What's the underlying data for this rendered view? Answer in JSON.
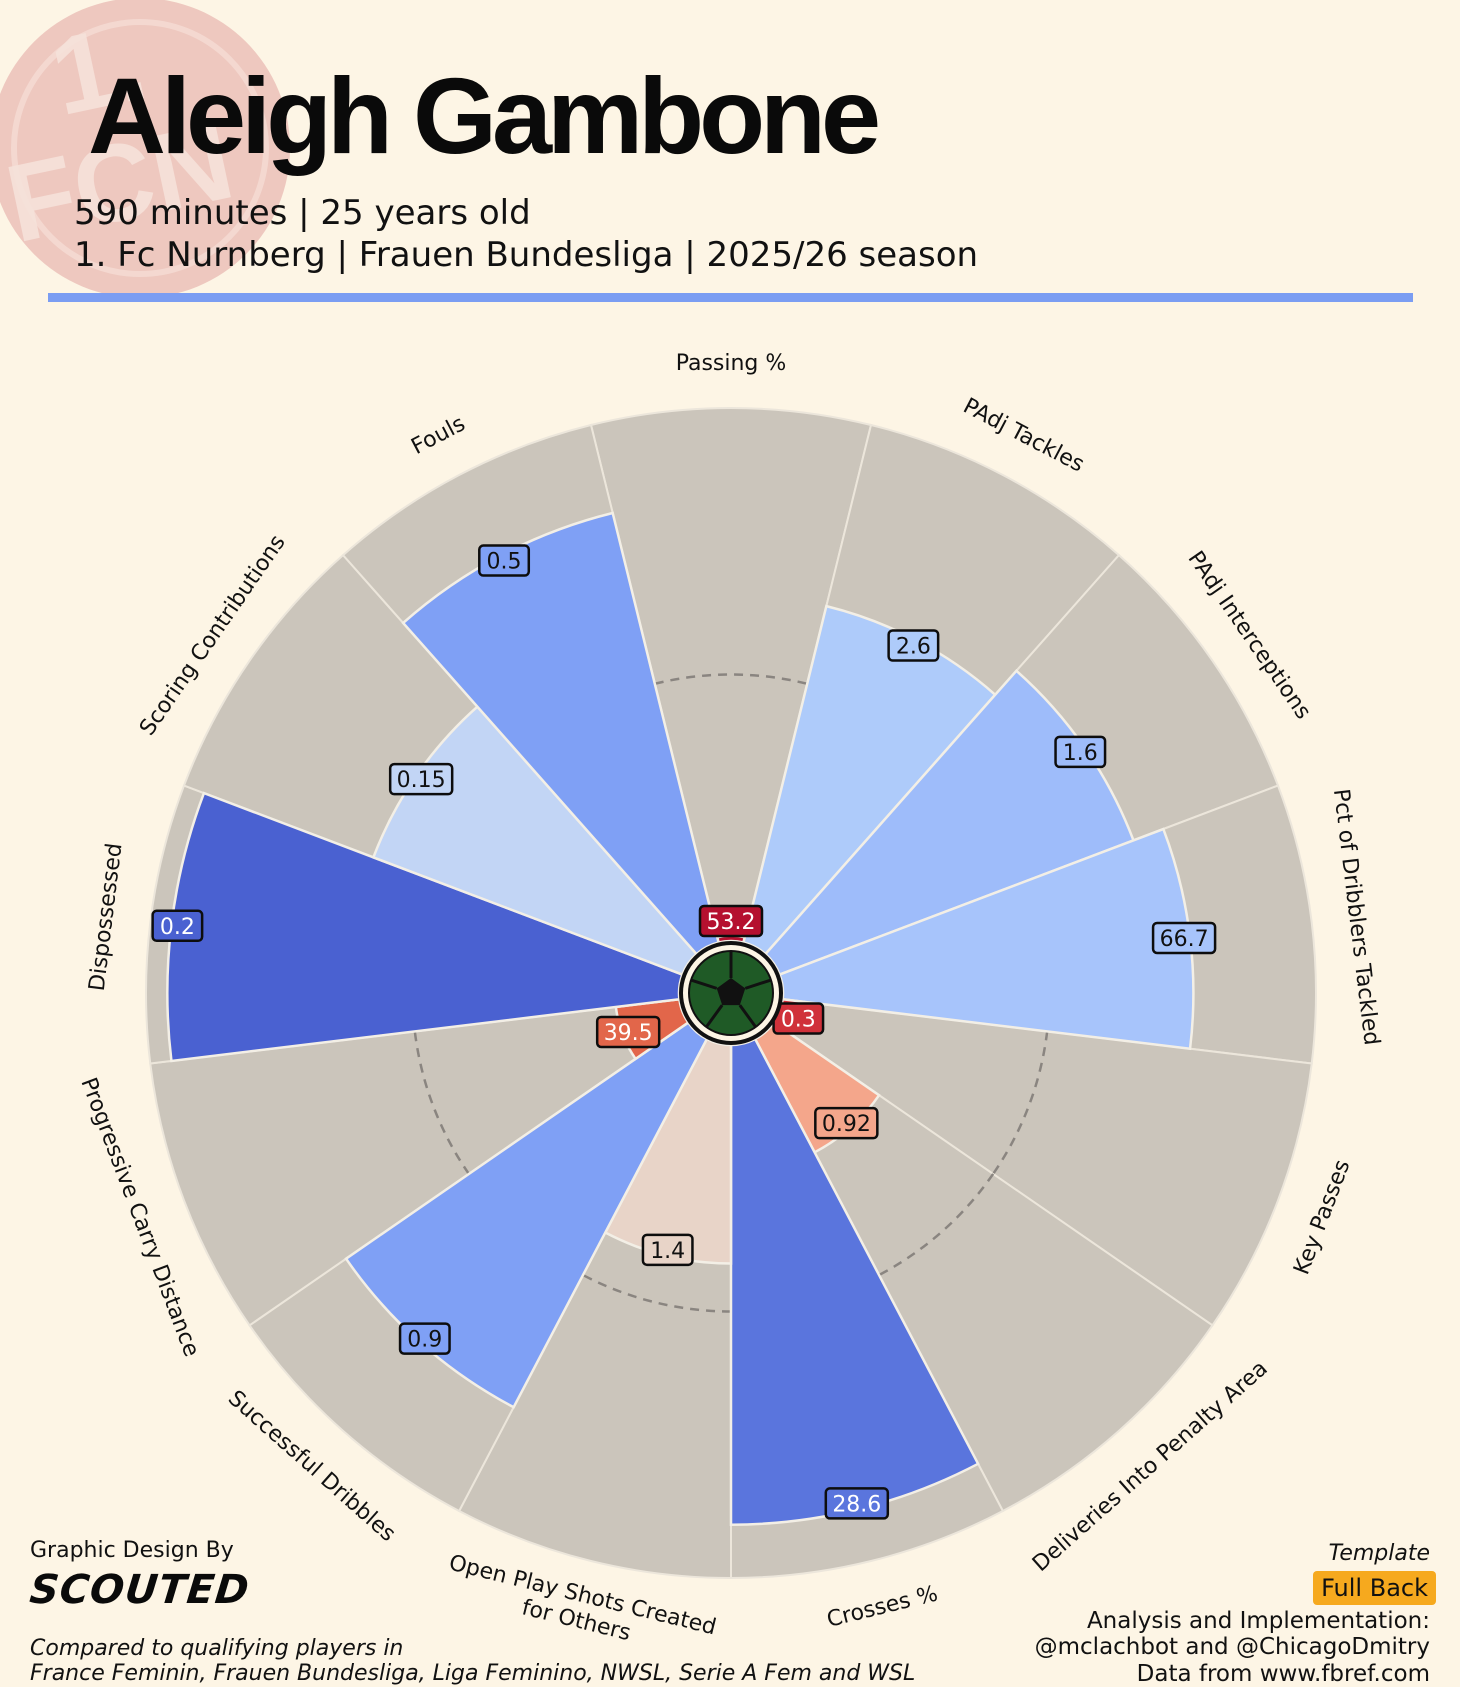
{
  "header": {
    "player_name": "Aleigh Gambone",
    "line1": "590 minutes | 25 years old",
    "line2": "1. Fc Nurnberg | Frauen Bundesliga | 2025/26 season",
    "accent_color": "#7b9df2",
    "badge": {
      "text": "1. FCN",
      "color": "#e8a3a3"
    }
  },
  "chart_data": {
    "type": "polar-bar",
    "direction": "clockwise",
    "start": "top",
    "scale_max_percentile": 100,
    "reference_ring": "dashed 50th percentile",
    "center_icon": "soccer-ball-icon",
    "series": [
      {
        "name": "Passing %",
        "value": "53.2",
        "percentile": 1,
        "color": "#b5102f"
      },
      {
        "name": "PAdj Tackles",
        "value": "2.6",
        "percentile": 65,
        "color": "#aecbfa"
      },
      {
        "name": "PAdj Interceptions",
        "value": "1.6",
        "percentile": 71,
        "color": "#9ebcfa"
      },
      {
        "name": "Pct of Dribblers Tackled",
        "value": "66.7",
        "percentile": 77,
        "color": "#a7c4fb"
      },
      {
        "name": "Key Passes",
        "value": "0.3",
        "percentile": 4,
        "color": "#d0313a"
      },
      {
        "name": "Deliveries Into Penalty Area",
        "value": "0.92",
        "percentile": 24,
        "color": "#f4a68b"
      },
      {
        "name": "Crosses %",
        "value": "28.6",
        "percentile": 90,
        "color": "#5a75dd"
      },
      {
        "name": "Open Play Shots Created for Others",
        "value": "1.4",
        "percentile": 41,
        "color": "#e8d4c8"
      },
      {
        "name": "Successful Dribbles",
        "value": "0.9",
        "percentile": 78,
        "color": "#7fa0f5"
      },
      {
        "name": "Progressive Carry Distance",
        "value": "39.5",
        "percentile": 12,
        "color": "#e2664a"
      },
      {
        "name": "Dispossessed",
        "value": "0.2",
        "percentile": 96,
        "color": "#4a61d1"
      },
      {
        "name": "Scoring Contributions",
        "value": "0.15",
        "percentile": 62,
        "color": "#c2d5f5"
      },
      {
        "name": "Fouls",
        "value": "0.5",
        "percentile": 83,
        "color": "#7fa0f5"
      }
    ]
  },
  "footer": {
    "design_by": "Graphic Design By",
    "brand": "SCOUTED",
    "compared_line1": "Compared to qualifying players in",
    "compared_line2": "France Feminin, Frauen Bundesliga, Liga Feminino, NWSL, Serie A Fem and WSL",
    "template_label": "Template",
    "template_value": "Full Back",
    "template_color": "#f6a91e",
    "analysis_line1": "Analysis and Implementation:",
    "analysis_line2": "@mclachbot and @ChicagoDmitry",
    "analysis_line3": "Data from www.fbref.com"
  }
}
